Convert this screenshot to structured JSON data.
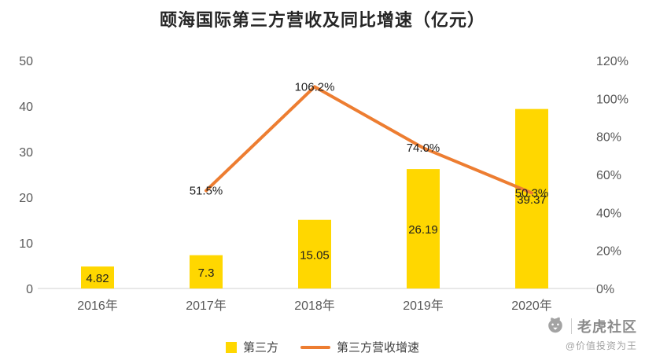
{
  "title": "颐海国际第三方营收及同比增速（亿元）",
  "chart_data": {
    "type": "bar+line",
    "categories": [
      "2016年",
      "2017年",
      "2018年",
      "2019年",
      "2020年"
    ],
    "series": [
      {
        "name": "第三方",
        "type": "bar",
        "axis": "left",
        "color": "#FFD700",
        "values": [
          4.82,
          7.3,
          15.05,
          26.19,
          39.37
        ],
        "value_labels": [
          "4.82",
          "7.3",
          "15.05",
          "26.19",
          "39.37"
        ]
      },
      {
        "name": "第三方营收增速",
        "type": "line",
        "axis": "right",
        "color": "#ED7D31",
        "values": [
          null,
          51.5,
          106.2,
          74.0,
          50.3
        ],
        "value_labels": [
          "",
          "51.5%",
          "106.2%",
          "74.0%",
          "50.3%"
        ]
      }
    ],
    "left_axis": {
      "min": 0,
      "max": 50,
      "ticks": [
        0,
        10,
        20,
        30,
        40,
        50
      ]
    },
    "right_axis": {
      "min": 0,
      "max": 120,
      "ticks": [
        "0%",
        "20%",
        "40%",
        "60%",
        "80%",
        "100%",
        "120%"
      ]
    },
    "legend_position": "bottom",
    "grid": false
  },
  "watermark": {
    "brand": "老虎社区",
    "handle": "@价值投资为王"
  }
}
